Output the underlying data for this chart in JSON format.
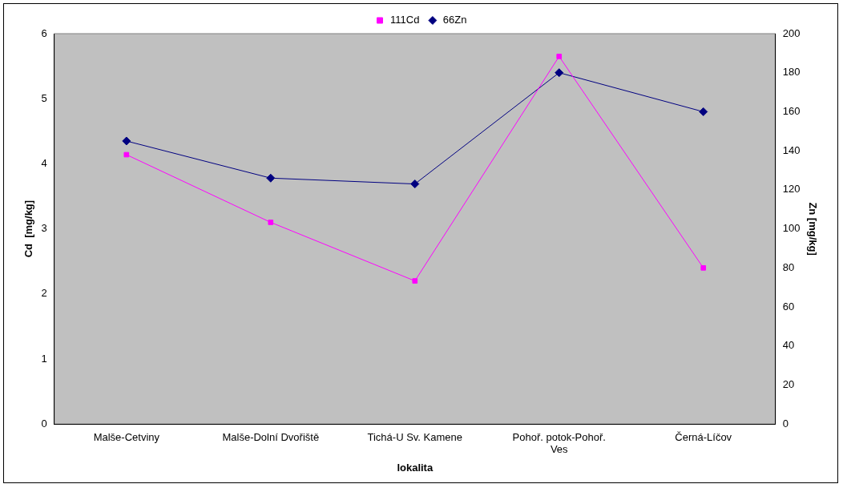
{
  "chart_data": {
    "type": "line",
    "xlabel": "lokalita",
    "ylabel": "Cd  [mg/kg]",
    "y2label": "Zn [mg/kg]",
    "categories": [
      "Malše-Cetviny",
      "Malše-Dolní Dvořiště",
      "Tichá-U Sv. Kamene",
      "Pohoř. potok-Pohoř. Ves",
      "Černá-Líčov"
    ],
    "series": [
      {
        "name": "111Cd",
        "color": "#ff00ff",
        "marker": "square",
        "values": [
          4.14,
          3.1,
          2.2,
          5.65,
          2.4
        ]
      },
      {
        "name": "66Zn",
        "color": "#000080",
        "marker": "diamond",
        "axis": "y2",
        "values": [
          145,
          126,
          123,
          180,
          160
        ]
      }
    ],
    "ylim": [
      0,
      6
    ],
    "yticks": [
      0,
      1,
      2,
      3,
      4,
      5,
      6
    ],
    "y2lim": [
      0,
      200
    ],
    "y2ticks": [
      0,
      20,
      40,
      60,
      80,
      100,
      120,
      140,
      160,
      180,
      200
    ],
    "grid": false,
    "legend": "top",
    "line_style": "solid"
  }
}
